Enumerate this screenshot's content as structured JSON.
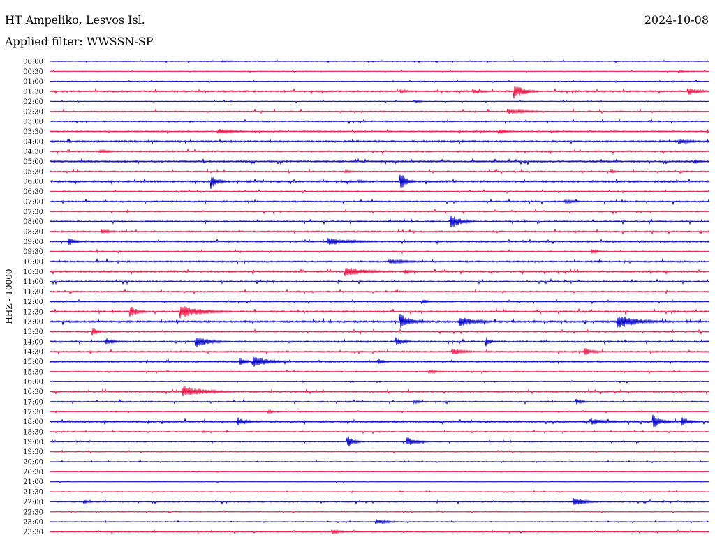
{
  "header": {
    "station": "HT Ampeliko, Lesvos Isl.",
    "date": "2024-10-08",
    "filter": "Applied filter: WWSSN-SP"
  },
  "colors": {
    "even_trace": "#0000cc",
    "odd_trace": "#ee1144",
    "background": "#ffffff"
  },
  "chart_data": {
    "type": "line",
    "ylabel": "HHZ - 10000",
    "rows": [
      "00:00",
      "00:30",
      "01:00",
      "01:30",
      "02:00",
      "02:30",
      "03:00",
      "03:30",
      "04:00",
      "04:30",
      "05:00",
      "05:30",
      "06:00",
      "06:30",
      "07:00",
      "07:30",
      "08:00",
      "08:30",
      "09:00",
      "09:30",
      "10:00",
      "10:30",
      "11:00",
      "11:30",
      "12:00",
      "12:30",
      "13:00",
      "13:30",
      "14:00",
      "14:30",
      "15:00",
      "15:30",
      "16:00",
      "16:30",
      "17:00",
      "17:30",
      "18:00",
      "18:30",
      "19:00",
      "19:30",
      "20:00",
      "20:30",
      "21:00",
      "21:30",
      "22:00",
      "22:30",
      "23:00",
      "23:30"
    ],
    "noise_levels": [
      0.6,
      0.5,
      0.6,
      1.4,
      0.5,
      0.9,
      1.0,
      1.0,
      1.5,
      1.3,
      1.4,
      1.0,
      1.5,
      0.9,
      1.2,
      1.0,
      1.3,
      1.2,
      1.3,
      1.0,
      1.3,
      1.4,
      1.2,
      1.0,
      1.0,
      1.4,
      1.6,
      1.1,
      1.3,
      1.2,
      1.2,
      0.9,
      0.5,
      1.3,
      1.0,
      0.6,
      1.5,
      0.8,
      0.8,
      0.7,
      0.6,
      0.4,
      0.4,
      0.5,
      0.9,
      0.6,
      0.6,
      0.8
    ],
    "events": [
      {
        "row": 0,
        "minute": 7.8,
        "amplitude": 2,
        "duration": 0.4
      },
      {
        "row": 1,
        "minute": 28.6,
        "amplitude": 2,
        "duration": 0.4
      },
      {
        "row": 3,
        "minute": 15.9,
        "amplitude": 3,
        "duration": 0.5
      },
      {
        "row": 3,
        "minute": 19.2,
        "amplitude": 4,
        "duration": 0.5
      },
      {
        "row": 3,
        "minute": 21.1,
        "amplitude": 11,
        "duration": 0.5
      },
      {
        "row": 3,
        "minute": 29.0,
        "amplitude": 6,
        "duration": 0.6
      },
      {
        "row": 4,
        "minute": 16.6,
        "amplitude": 2,
        "duration": 0.3
      },
      {
        "row": 5,
        "minute": 20.8,
        "amplitude": 4,
        "duration": 1.0
      },
      {
        "row": 7,
        "minute": 7.6,
        "amplitude": 5,
        "duration": 0.7
      },
      {
        "row": 7,
        "minute": 20.4,
        "amplitude": 4,
        "duration": 0.4
      },
      {
        "row": 8,
        "minute": 28.6,
        "amplitude": 4,
        "duration": 0.7
      },
      {
        "row": 9,
        "minute": 2.2,
        "amplitude": 3,
        "duration": 0.6
      },
      {
        "row": 10,
        "minute": 29.3,
        "amplitude": 4,
        "duration": 0.3
      },
      {
        "row": 11,
        "minute": 13.4,
        "amplitude": 3,
        "duration": 0.3
      },
      {
        "row": 11,
        "minute": 25.5,
        "amplitude": 3,
        "duration": 0.3
      },
      {
        "row": 12,
        "minute": 7.3,
        "amplitude": 12,
        "duration": 0.3
      },
      {
        "row": 12,
        "minute": 15.9,
        "amplitude": 15,
        "duration": 0.3
      },
      {
        "row": 12,
        "minute": 14.0,
        "amplitude": 3,
        "duration": 0.4
      },
      {
        "row": 14,
        "minute": 23.4,
        "amplitude": 3,
        "duration": 0.6
      },
      {
        "row": 16,
        "minute": 18.2,
        "amplitude": 11,
        "duration": 0.5
      },
      {
        "row": 17,
        "minute": 2.3,
        "amplitude": 5,
        "duration": 0.4
      },
      {
        "row": 18,
        "minute": 0.8,
        "amplitude": 7,
        "duration": 0.3
      },
      {
        "row": 18,
        "minute": 12.6,
        "amplitude": 6,
        "duration": 1.1
      },
      {
        "row": 19,
        "minute": 24.6,
        "amplitude": 5,
        "duration": 0.3
      },
      {
        "row": 20,
        "minute": 15.4,
        "amplitude": 4,
        "duration": 0.9
      },
      {
        "row": 21,
        "minute": 13.4,
        "amplitude": 8,
        "duration": 0.9
      },
      {
        "row": 21,
        "minute": 16.1,
        "amplitude": 4,
        "duration": 0.4
      },
      {
        "row": 24,
        "minute": 16.9,
        "amplitude": 4,
        "duration": 0.3
      },
      {
        "row": 25,
        "minute": 3.6,
        "amplitude": 9,
        "duration": 0.4
      },
      {
        "row": 25,
        "minute": 5.9,
        "amplitude": 10,
        "duration": 1.0
      },
      {
        "row": 26,
        "minute": 15.9,
        "amplitude": 12,
        "duration": 0.5
      },
      {
        "row": 26,
        "minute": 18.6,
        "amplitude": 8,
        "duration": 0.8
      },
      {
        "row": 26,
        "minute": 25.8,
        "amplitude": 11,
        "duration": 0.9
      },
      {
        "row": 27,
        "minute": 1.9,
        "amplitude": 6,
        "duration": 0.3
      },
      {
        "row": 28,
        "minute": 2.5,
        "amplitude": 6,
        "duration": 0.4
      },
      {
        "row": 28,
        "minute": 6.6,
        "amplitude": 10,
        "duration": 0.6
      },
      {
        "row": 28,
        "minute": 15.7,
        "amplitude": 7,
        "duration": 0.4
      },
      {
        "row": 28,
        "minute": 19.8,
        "amplitude": 9,
        "duration": 0.2
      },
      {
        "row": 29,
        "minute": 18.3,
        "amplitude": 6,
        "duration": 0.5
      },
      {
        "row": 29,
        "minute": 24.3,
        "amplitude": 6,
        "duration": 0.4
      },
      {
        "row": 30,
        "minute": 8.6,
        "amplitude": 7,
        "duration": 0.3
      },
      {
        "row": 30,
        "minute": 9.2,
        "amplitude": 9,
        "duration": 0.7
      },
      {
        "row": 30,
        "minute": 14.9,
        "amplitude": 5,
        "duration": 0.3
      },
      {
        "row": 31,
        "minute": 17.2,
        "amplitude": 3,
        "duration": 0.6
      },
      {
        "row": 33,
        "minute": 6.0,
        "amplitude": 9,
        "duration": 1.0
      },
      {
        "row": 34,
        "minute": 16.5,
        "amplitude": 3,
        "duration": 0.4
      },
      {
        "row": 34,
        "minute": 23.9,
        "amplitude": 5,
        "duration": 0.3
      },
      {
        "row": 35,
        "minute": 9.9,
        "amplitude": 4,
        "duration": 0.2
      },
      {
        "row": 36,
        "minute": 8.5,
        "amplitude": 7,
        "duration": 0.4
      },
      {
        "row": 36,
        "minute": 24.6,
        "amplitude": 5,
        "duration": 0.8
      },
      {
        "row": 36,
        "minute": 27.4,
        "amplitude": 11,
        "duration": 0.4
      },
      {
        "row": 36,
        "minute": 28.7,
        "amplitude": 8,
        "duration": 0.4
      },
      {
        "row": 37,
        "minute": 6.9,
        "amplitude": 2,
        "duration": 0.3
      },
      {
        "row": 38,
        "minute": 13.5,
        "amplitude": 10,
        "duration": 0.3
      },
      {
        "row": 38,
        "minute": 16.2,
        "amplitude": 7,
        "duration": 0.5
      },
      {
        "row": 44,
        "minute": 1.5,
        "amplitude": 3,
        "duration": 0.3
      },
      {
        "row": 44,
        "minute": 23.8,
        "amplitude": 7,
        "duration": 0.5
      },
      {
        "row": 46,
        "minute": 14.8,
        "amplitude": 5,
        "duration": 0.5
      },
      {
        "row": 47,
        "minute": 12.8,
        "amplitude": 4,
        "duration": 0.4
      }
    ]
  }
}
